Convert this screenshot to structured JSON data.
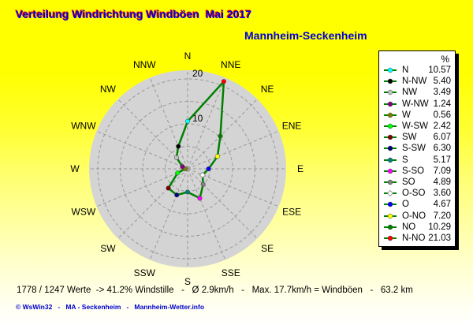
{
  "header": {
    "title": "Verteilung Windrichtung Windböen  Mai 2017",
    "subtitle": "Mannheim-Seckenheim"
  },
  "colors": {
    "title_blue": "#0000d8",
    "title_shadow_red": "#ff0000",
    "background_top": "#ffff00",
    "background_bottom": "#ffffff",
    "disc_gray": "#d4d4d4",
    "grid_gray": "#999999",
    "polyline_green": "#008000",
    "legend_bg": "#ffffff",
    "legend_border": "#000000",
    "footer_blue": "#0000cc",
    "text_black": "#000000"
  },
  "chart_data": {
    "type": "line",
    "subtype": "wind-rose-polar",
    "unit": "%",
    "grid": true,
    "legend_position": "right",
    "angle_order": [
      "N",
      "NNE",
      "NE",
      "ENE",
      "E",
      "ESE",
      "SE",
      "SSE",
      "S",
      "SSW",
      "SW",
      "WSW",
      "W",
      "WNW",
      "NW",
      "NNW"
    ],
    "compass_labels": [
      "N",
      "NNE",
      "NE",
      "ENE",
      "E",
      "ESE",
      "SE",
      "SSE",
      "S",
      "SSW",
      "SW",
      "WSW",
      "W",
      "WNW",
      "NW",
      "NNW"
    ],
    "grid_circles": [
      5,
      10,
      15,
      20
    ],
    "radial_ticks": [
      10,
      20
    ],
    "radial_tick_labels": [
      "10",
      "20"
    ],
    "r_max": 21.9,
    "series": [
      {
        "label": "N",
        "direction": "N",
        "value": 10.57,
        "value_text": "10.57",
        "color": "#00ffff",
        "marker": "circle"
      },
      {
        "label": "N-NW",
        "direction": "NNW",
        "value": 5.4,
        "value_text": "5.40",
        "color": "#000000",
        "marker": "circle"
      },
      {
        "label": "NW",
        "direction": "NW",
        "value": 3.49,
        "value_text": "3.49",
        "color": "#c0c0c0",
        "marker": "circle"
      },
      {
        "label": "W-NW",
        "direction": "WNW",
        "value": 1.24,
        "value_text": "1.24",
        "color": "#800080",
        "marker": "circle"
      },
      {
        "label": "W",
        "direction": "W",
        "value": 0.56,
        "value_text": "0.56",
        "color": "#808000",
        "marker": "circle"
      },
      {
        "label": "W-SW",
        "direction": "WSW",
        "value": 2.42,
        "value_text": "2.42",
        "color": "#00ff00",
        "marker": "circle"
      },
      {
        "label": "SW",
        "direction": "SW",
        "value": 6.07,
        "value_text": "6.07",
        "color": "#800000",
        "marker": "circle"
      },
      {
        "label": "S-SW",
        "direction": "SSW",
        "value": 6.3,
        "value_text": "6.30",
        "color": "#000080",
        "marker": "circle"
      },
      {
        "label": "S",
        "direction": "S",
        "value": 5.17,
        "value_text": "5.17",
        "color": "#008080",
        "marker": "circle"
      },
      {
        "label": "S-SO",
        "direction": "SSE",
        "value": 7.09,
        "value_text": "7.09",
        "color": "#ff00ff",
        "marker": "circle"
      },
      {
        "label": "SO",
        "direction": "SE",
        "value": 4.89,
        "value_text": "4.89",
        "color": "#808080",
        "marker": "circle"
      },
      {
        "label": "O-SO",
        "direction": "ESE",
        "value": 3.6,
        "value_text": "3.60",
        "color": "#ffffff",
        "marker": "diamond"
      },
      {
        "label": "O",
        "direction": "E",
        "value": 4.67,
        "value_text": "4.67",
        "color": "#0000ff",
        "marker": "circle"
      },
      {
        "label": "O-NO",
        "direction": "ENE",
        "value": 7.2,
        "value_text": "7.20",
        "color": "#ffff00",
        "marker": "circle"
      },
      {
        "label": "NO",
        "direction": "NE",
        "value": 10.29,
        "value_text": "10.29",
        "color": "#008000",
        "marker": "circle"
      },
      {
        "label": "N-NO",
        "direction": "NNE",
        "value": 21.03,
        "value_text": "21.03",
        "color": "#ff0000",
        "marker": "circle"
      }
    ]
  },
  "legend": {
    "header": "%"
  },
  "status_line": "1778 / 1247 Werte  -> 41.2% Windstille   -   Ø 2.9km/h   -   Max. 17.7km/h = Windböen   -   63.2 km",
  "footer": "© WsWin32   -   MA - Seckenheim   -   Mannheim-Wetter.info"
}
